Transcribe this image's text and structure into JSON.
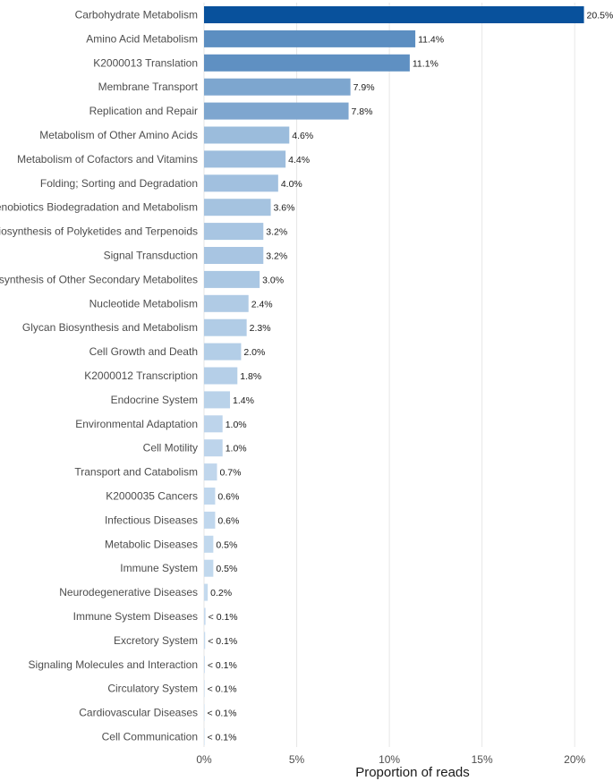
{
  "chart_data": {
    "type": "bar",
    "orientation": "horizontal",
    "xlabel": "Proportion of reads",
    "ylabel": "",
    "xlim": [
      0,
      21.5
    ],
    "xticks": [
      0,
      5,
      10,
      15,
      20
    ],
    "xtick_labels": [
      "0%",
      "5%",
      "10%",
      "15%",
      "20%"
    ],
    "grid": "vertical",
    "categories": [
      "Carbohydrate Metabolism",
      "Amino Acid Metabolism",
      "K2000013 Translation",
      "Membrane Transport",
      "Replication and Repair",
      "Metabolism of Other Amino Acids",
      "Metabolism of Cofactors and Vitamins",
      "Folding; Sorting and Degradation",
      "Xenobiotics Biodegradation and Metabolism",
      "Biosynthesis of Polyketides and Terpenoids",
      "Signal Transduction",
      "Biosynthesis of Other Secondary Metabolites",
      "Nucleotide Metabolism",
      "Glycan Biosynthesis and Metabolism",
      "Cell Growth and Death",
      "K2000012 Transcription",
      "Endocrine System",
      "Environmental Adaptation",
      "Cell Motility",
      "Transport and Catabolism",
      "K2000035 Cancers",
      "Infectious Diseases",
      "Metabolic Diseases",
      "Immune System",
      "Neurodegenerative Diseases",
      "Immune System Diseases",
      "Excretory System",
      "Signaling Molecules and Interaction",
      "Circulatory System",
      "Cardiovascular Diseases",
      "Cell Communication"
    ],
    "values": [
      20.5,
      11.4,
      11.1,
      7.9,
      7.8,
      4.6,
      4.4,
      4.0,
      3.6,
      3.2,
      3.2,
      3.0,
      2.4,
      2.3,
      2.0,
      1.8,
      1.4,
      1.0,
      1.0,
      0.7,
      0.6,
      0.6,
      0.5,
      0.5,
      0.2,
      0.08,
      0.06,
      0.04,
      0.03,
      0.02,
      0.01
    ],
    "value_labels": [
      "20.5%",
      "11.4%",
      "11.1%",
      "7.9%",
      "7.8%",
      "4.6%",
      "4.4%",
      "4.0%",
      "3.6%",
      "3.2%",
      "3.2%",
      "3.0%",
      "2.4%",
      "2.3%",
      "2.0%",
      "1.8%",
      "1.4%",
      "1.0%",
      "1.0%",
      "0.7%",
      "0.6%",
      "0.6%",
      "0.5%",
      "0.5%",
      "0.2%",
      "< 0.1%",
      "< 0.1%",
      "< 0.1%",
      "< 0.1%",
      "< 0.1%",
      "< 0.1%"
    ],
    "color_scale": {
      "low": "#c6dbef",
      "high": "#08519c"
    }
  }
}
